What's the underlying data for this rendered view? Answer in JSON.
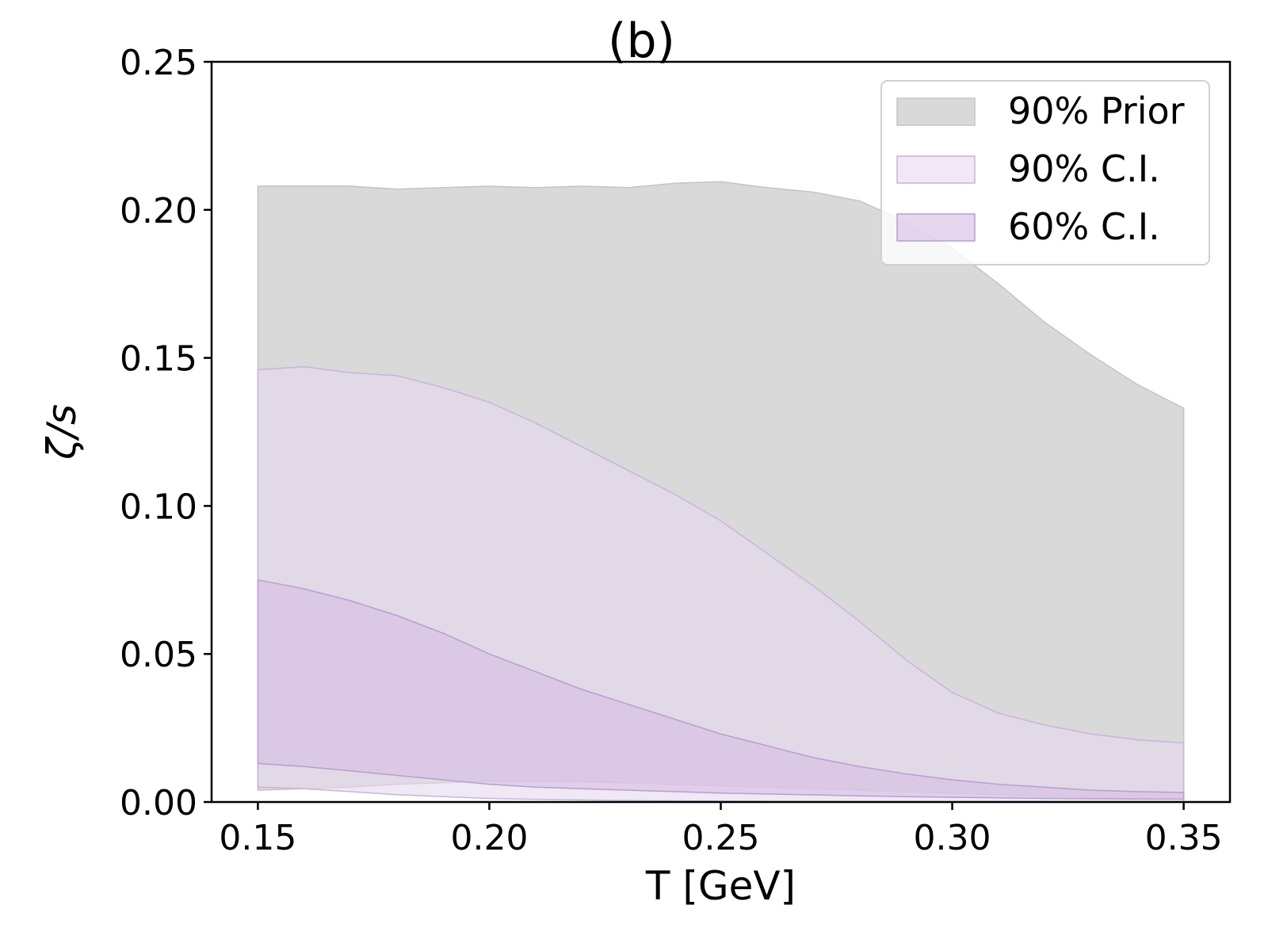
{
  "chart_data": {
    "type": "area",
    "title": "(b)",
    "xlabel": "T [GeV]",
    "ylabel": "ζ/s",
    "xlim": [
      0.14,
      0.36
    ],
    "ylim": [
      0.0,
      0.25
    ],
    "xticks": [
      0.15,
      0.2,
      0.25,
      0.3,
      0.35
    ],
    "xtick_labels": [
      "0.15",
      "0.20",
      "0.25",
      "0.30",
      "0.35"
    ],
    "yticks": [
      0.0,
      0.05,
      0.1,
      0.15,
      0.2,
      0.25
    ],
    "ytick_labels": [
      "0.00",
      "0.05",
      "0.10",
      "0.15",
      "0.20",
      "0.25"
    ],
    "grid": false,
    "legend_position": "top-right",
    "x": [
      0.15,
      0.16,
      0.17,
      0.18,
      0.19,
      0.2,
      0.21,
      0.22,
      0.23,
      0.24,
      0.25,
      0.26,
      0.27,
      0.28,
      0.29,
      0.3,
      0.31,
      0.32,
      0.33,
      0.34,
      0.35
    ],
    "series": [
      {
        "name": "90% Prior",
        "color": "#d9d9d9",
        "edge_color": "#c4c4c4",
        "lower": [
          0.004,
          0.0045,
          0.005,
          0.006,
          0.0065,
          0.007,
          0.007,
          0.0068,
          0.0065,
          0.006,
          0.0055,
          0.005,
          0.0045,
          0.004,
          0.0035,
          0.003,
          0.0025,
          0.002,
          0.0015,
          0.001,
          0.001
        ],
        "upper": [
          0.208,
          0.208,
          0.208,
          0.207,
          0.2075,
          0.208,
          0.2075,
          0.208,
          0.2075,
          0.209,
          0.2095,
          0.2075,
          0.206,
          0.203,
          0.196,
          0.187,
          0.175,
          0.162,
          0.151,
          0.141,
          0.133
        ]
      },
      {
        "name": "90% C.I.",
        "color": "#e6d8ef",
        "edge_color": "#c9b3dc",
        "lower": [
          0.005,
          0.0045,
          0.0035,
          0.0025,
          0.0018,
          0.0012,
          0.0009,
          0.0007,
          0.0005,
          0.0004,
          0.0003,
          0.0002,
          0.00015,
          0.0001,
          0.0001,
          0.0001,
          0.0001,
          0.0001,
          0.0001,
          0.0001,
          0.0001
        ],
        "upper": [
          0.146,
          0.147,
          0.145,
          0.144,
          0.14,
          0.135,
          0.128,
          0.12,
          0.112,
          0.104,
          0.095,
          0.084,
          0.073,
          0.061,
          0.048,
          0.037,
          0.03,
          0.026,
          0.023,
          0.021,
          0.02
        ]
      },
      {
        "name": "60% C.I.",
        "color": "#d5bde4",
        "edge_color": "#b79fd0",
        "lower": [
          0.013,
          0.012,
          0.0105,
          0.009,
          0.0075,
          0.006,
          0.005,
          0.0045,
          0.004,
          0.0035,
          0.003,
          0.0027,
          0.0024,
          0.0021,
          0.0018,
          0.0016,
          0.0014,
          0.0012,
          0.0011,
          0.001,
          0.001
        ],
        "upper": [
          0.075,
          0.072,
          0.068,
          0.063,
          0.057,
          0.05,
          0.044,
          0.038,
          0.033,
          0.028,
          0.023,
          0.019,
          0.015,
          0.012,
          0.0095,
          0.0075,
          0.006,
          0.005,
          0.004,
          0.0035,
          0.0032
        ]
      }
    ]
  }
}
